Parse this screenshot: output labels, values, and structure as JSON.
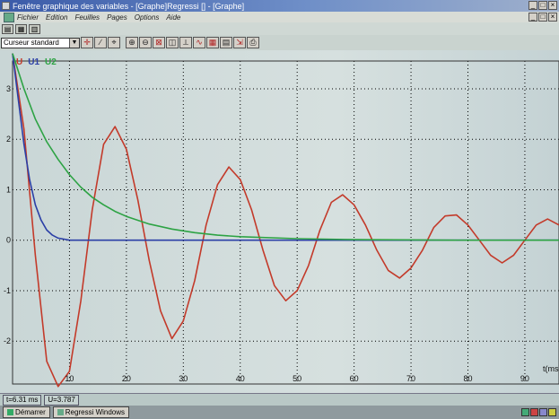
{
  "window": {
    "title": "Fenêtre graphique des variables - [Graphe]Regressi [] - [Graphe]"
  },
  "menu": {
    "items": [
      "Fichier",
      "Edition",
      "Feuilles",
      "Pages",
      "Options",
      "Aide"
    ]
  },
  "toolbar": {
    "cursor_mode": "Curseur standard",
    "buttons": [
      "magnify-plus-icon",
      "magnify-minus-icon",
      "zoom-box-icon",
      "zoom-auto-icon",
      "axes-icon",
      "model-icon",
      "grid-icon",
      "table-icon",
      "export-icon",
      "print-icon"
    ]
  },
  "legend": {
    "x": "U",
    "series": [
      "U1",
      "U2"
    ]
  },
  "status": {
    "time": "t=6.31 ms",
    "value": "U=3.787"
  },
  "taskbar": {
    "tasks": [
      "Démarrer",
      "Regressi Windows"
    ]
  },
  "colors": {
    "U": "#c33a2a",
    "U1": "#2b3fa6",
    "U2": "#2da344",
    "grid": "#000000"
  },
  "chart_data": {
    "type": "line",
    "xlabel": "t(ms)",
    "ylabel": "",
    "xlim": [
      0,
      96
    ],
    "ylim": [
      -2.85,
      3.55
    ],
    "x_ticks": [
      10,
      20,
      30,
      40,
      50,
      60,
      70,
      80,
      90
    ],
    "y_ticks": [
      -2,
      -1,
      0,
      1,
      2,
      3
    ],
    "grid": true,
    "series": [
      {
        "name": "U",
        "color": "#c33a2a",
        "points": [
          [
            0,
            3.7
          ],
          [
            2,
            2.2
          ],
          [
            4,
            -0.3
          ],
          [
            6,
            -2.4
          ],
          [
            8,
            -2.9
          ],
          [
            10,
            -2.6
          ],
          [
            12,
            -1.2
          ],
          [
            14,
            0.6
          ],
          [
            16,
            1.9
          ],
          [
            18,
            2.25
          ],
          [
            20,
            1.8
          ],
          [
            22,
            0.8
          ],
          [
            24,
            -0.4
          ],
          [
            26,
            -1.4
          ],
          [
            28,
            -1.95
          ],
          [
            30,
            -1.6
          ],
          [
            32,
            -0.8
          ],
          [
            34,
            0.3
          ],
          [
            36,
            1.1
          ],
          [
            38,
            1.45
          ],
          [
            40,
            1.2
          ],
          [
            42,
            0.6
          ],
          [
            44,
            -0.2
          ],
          [
            46,
            -0.9
          ],
          [
            48,
            -1.2
          ],
          [
            50,
            -1.0
          ],
          [
            52,
            -0.5
          ],
          [
            54,
            0.2
          ],
          [
            56,
            0.75
          ],
          [
            58,
            0.9
          ],
          [
            60,
            0.7
          ],
          [
            62,
            0.3
          ],
          [
            64,
            -0.2
          ],
          [
            66,
            -0.6
          ],
          [
            68,
            -0.75
          ],
          [
            70,
            -0.55
          ],
          [
            72,
            -0.2
          ],
          [
            74,
            0.25
          ],
          [
            76,
            0.48
          ],
          [
            78,
            0.5
          ],
          [
            80,
            0.3
          ],
          [
            82,
            0.0
          ],
          [
            84,
            -0.3
          ],
          [
            86,
            -0.45
          ],
          [
            88,
            -0.3
          ],
          [
            90,
            0.0
          ],
          [
            92,
            0.3
          ],
          [
            94,
            0.42
          ],
          [
            96,
            0.3
          ]
        ]
      },
      {
        "name": "U1",
        "color": "#2b3fa6",
        "points": [
          [
            0,
            3.7
          ],
          [
            1,
            2.8
          ],
          [
            2,
            1.9
          ],
          [
            3,
            1.2
          ],
          [
            4,
            0.7
          ],
          [
            5,
            0.4
          ],
          [
            6,
            0.2
          ],
          [
            7,
            0.1
          ],
          [
            8,
            0.04
          ],
          [
            10,
            0.0
          ],
          [
            20,
            0.0
          ],
          [
            40,
            0.0
          ],
          [
            60,
            0.0
          ],
          [
            80,
            0.0
          ],
          [
            96,
            0.0
          ]
        ]
      },
      {
        "name": "U2",
        "color": "#2da344",
        "points": [
          [
            0,
            3.7
          ],
          [
            2,
            3.0
          ],
          [
            4,
            2.4
          ],
          [
            6,
            1.95
          ],
          [
            8,
            1.6
          ],
          [
            10,
            1.3
          ],
          [
            12,
            1.05
          ],
          [
            14,
            0.85
          ],
          [
            16,
            0.7
          ],
          [
            18,
            0.57
          ],
          [
            20,
            0.47
          ],
          [
            24,
            0.32
          ],
          [
            28,
            0.22
          ],
          [
            32,
            0.15
          ],
          [
            36,
            0.1
          ],
          [
            40,
            0.07
          ],
          [
            50,
            0.03
          ],
          [
            60,
            0.01
          ],
          [
            80,
            0.0
          ],
          [
            96,
            0.0
          ]
        ]
      }
    ]
  }
}
